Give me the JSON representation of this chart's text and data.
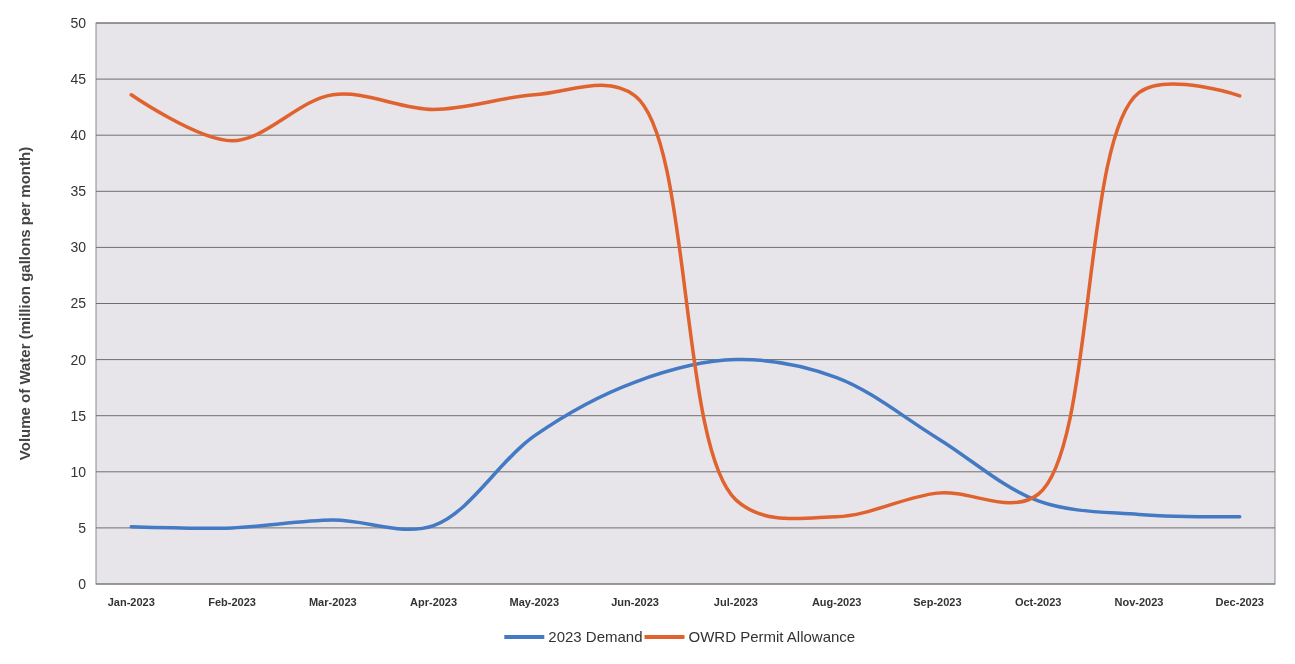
{
  "chart_data": {
    "type": "line",
    "ylabel": "Volume of Water (million gallons per month)",
    "categories": [
      "Jan-2023",
      "Feb-2023",
      "Mar-2023",
      "Apr-2023",
      "May-2023",
      "Jun-2023",
      "Jul-2023",
      "Aug-2023",
      "Sep-2023",
      "Oct-2023",
      "Nov-2023",
      "Dec-2023"
    ],
    "series": [
      {
        "name": "2023 Demand",
        "color": "#4479c4",
        "values": [
          5.1,
          5.0,
          5.7,
          5.2,
          13.2,
          18.0,
          20.0,
          18.4,
          13.0,
          7.4,
          6.2,
          6.0
        ]
      },
      {
        "name": "OWRD Permit Allowance",
        "color": "#e0622e",
        "values": [
          43.6,
          39.5,
          43.6,
          42.3,
          43.6,
          43.5,
          7.5,
          6.0,
          8.1,
          8.0,
          43.8,
          43.5
        ]
      }
    ],
    "ylim": [
      0,
      50
    ],
    "yticks": [
      0,
      5,
      10,
      15,
      20,
      25,
      30,
      35,
      40,
      45,
      50
    ],
    "grid": "y",
    "legend": "bottom",
    "marker": "none",
    "line_style": "solid"
  }
}
